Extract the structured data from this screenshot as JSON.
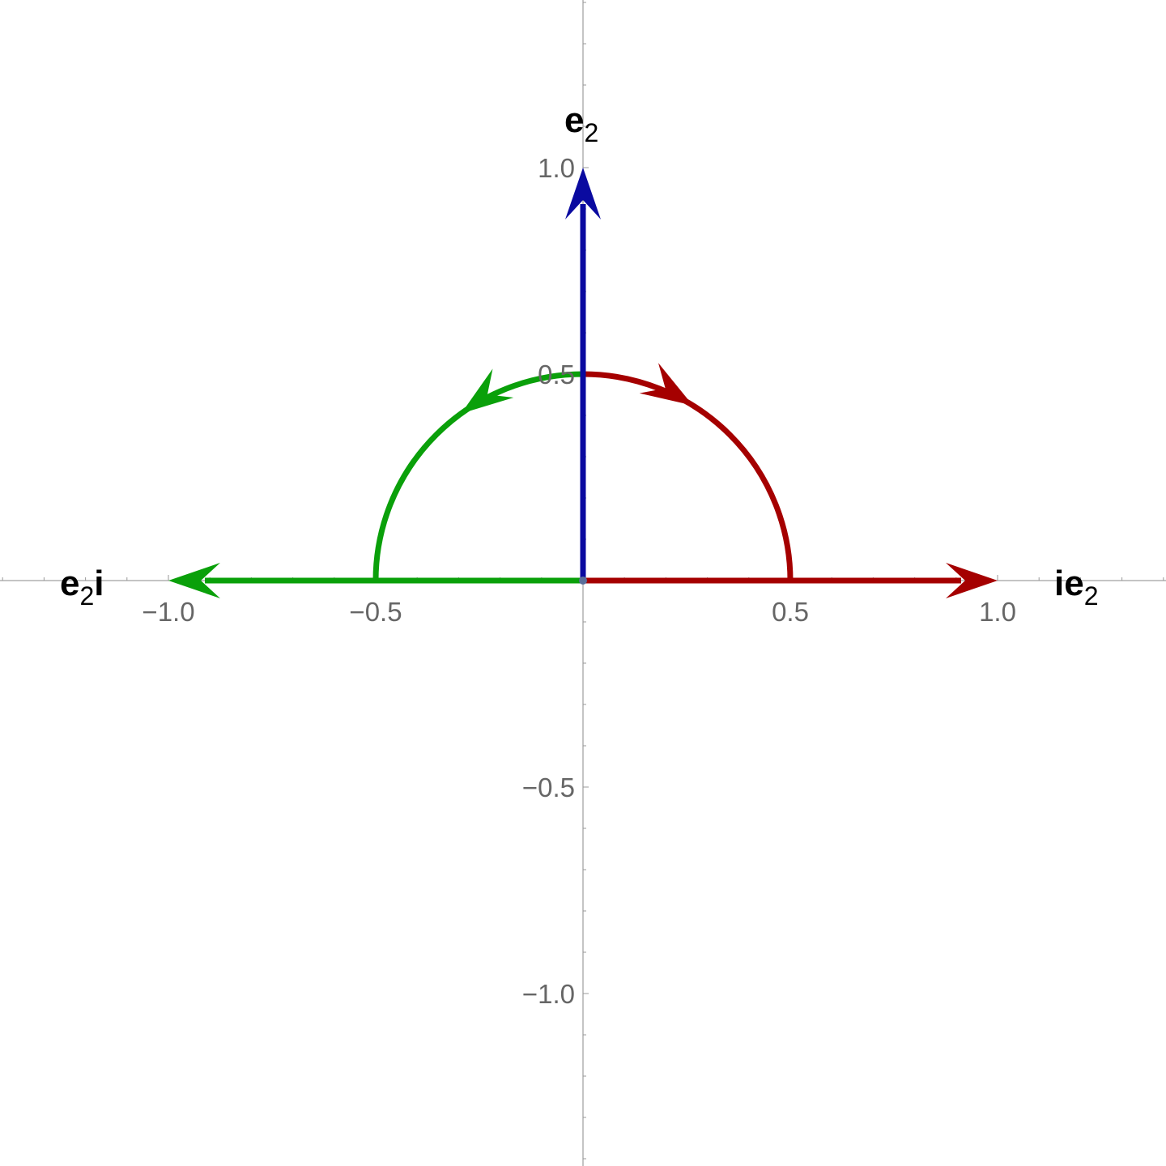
{
  "diagram": {
    "x_range": [
      -1.4,
      1.4
    ],
    "y_range": [
      -1.4,
      1.4
    ],
    "x_ticks": [
      {
        "value": -1.0,
        "label": "−1.0"
      },
      {
        "value": -0.5,
        "label": "−0.5"
      },
      {
        "value": 0.5,
        "label": "0.5"
      },
      {
        "value": 1.0,
        "label": "1.0"
      }
    ],
    "y_ticks": [
      {
        "value": 1.0,
        "label": "1.0"
      },
      {
        "value": 0.5,
        "label": "0.5"
      },
      {
        "value": -0.5,
        "label": "−0.5"
      },
      {
        "value": -1.0,
        "label": "−1.0"
      }
    ],
    "vectors": [
      {
        "name": "e2",
        "from": [
          0,
          0
        ],
        "to": [
          0,
          1
        ],
        "color": "#0a0aa0"
      },
      {
        "name": "ie2",
        "from": [
          0,
          0
        ],
        "to": [
          1,
          0
        ],
        "color": "#a50000"
      },
      {
        "name": "e2i",
        "from": [
          0,
          0
        ],
        "to": [
          -1,
          0
        ],
        "color": "#0aa00a"
      }
    ],
    "arcs": [
      {
        "name": "clockwise-arc",
        "radius": 0.5,
        "start_deg": 90,
        "end_deg": 0,
        "arrow_at_deg": 58,
        "color": "#a50000"
      },
      {
        "name": "counterclockwise-arc",
        "radius": 0.5,
        "start_deg": 90,
        "end_deg": 180,
        "arrow_at_deg": 126,
        "color": "#0aa00a"
      }
    ],
    "origin_color": "#5a6e9a"
  },
  "labels": {
    "e2": {
      "main": "e",
      "sub": "2"
    },
    "ie2": {
      "prefix": "i",
      "main": "e",
      "sub": "2"
    },
    "e2i": {
      "main": "e",
      "sub": "2",
      "suffix": "i"
    }
  }
}
